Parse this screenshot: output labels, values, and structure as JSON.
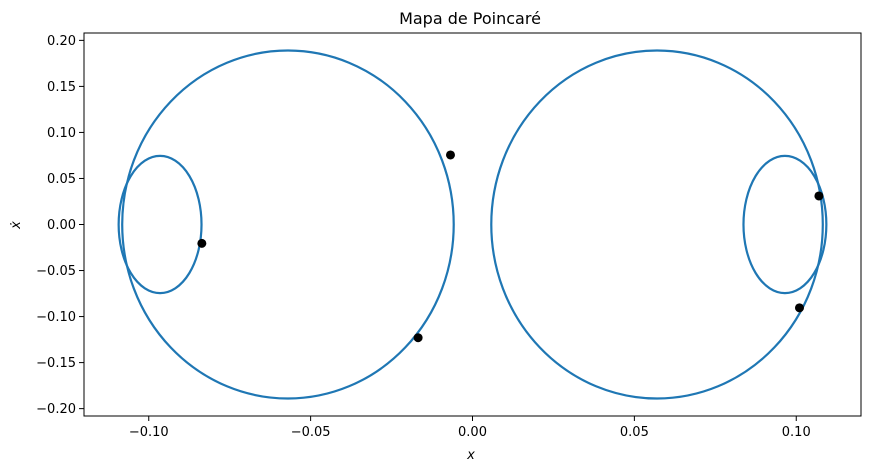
{
  "chart_data": {
    "type": "scatter",
    "title": "Mapa de Poincaré",
    "xlabel": "x",
    "ylabel": "ẋ",
    "xlim": [
      -0.12,
      0.12
    ],
    "ylim": [
      -0.208,
      0.208
    ],
    "x_ticks": [
      -0.1,
      -0.05,
      0.0,
      0.05,
      0.1
    ],
    "x_tick_labels": [
      "−0.10",
      "−0.05",
      "0.00",
      "0.05",
      "0.10"
    ],
    "y_ticks": [
      -0.2,
      -0.15,
      -0.1,
      -0.05,
      0.0,
      0.05,
      0.1,
      0.15,
      0.2
    ],
    "y_tick_labels": [
      "−0.20",
      "−0.15",
      "−0.10",
      "−0.05",
      "0.00",
      "0.05",
      "0.10",
      "0.15",
      "0.20"
    ],
    "grid": false,
    "series": [
      {
        "kind": "line",
        "color": "#1f77b4",
        "curves": [
          {
            "cx": -0.057,
            "cy": 0.0,
            "rx": 0.0512,
            "ry": 0.189
          },
          {
            "cx": 0.057,
            "cy": 0.0,
            "rx": 0.0512,
            "ry": 0.189
          },
          {
            "cx": -0.0965,
            "cy": 0.0,
            "rx": 0.0128,
            "ry": 0.0745
          },
          {
            "cx": 0.0965,
            "cy": 0.0,
            "rx": 0.0128,
            "ry": 0.0745
          }
        ]
      },
      {
        "kind": "points",
        "color": "#000000",
        "points": [
          {
            "x": -0.0836,
            "y": -0.0205
          },
          {
            "x": -0.0068,
            "y": 0.0755
          },
          {
            "x": -0.0168,
            "y": -0.123
          },
          {
            "x": 0.107,
            "y": 0.031
          },
          {
            "x": 0.101,
            "y": -0.0905
          }
        ]
      }
    ]
  }
}
